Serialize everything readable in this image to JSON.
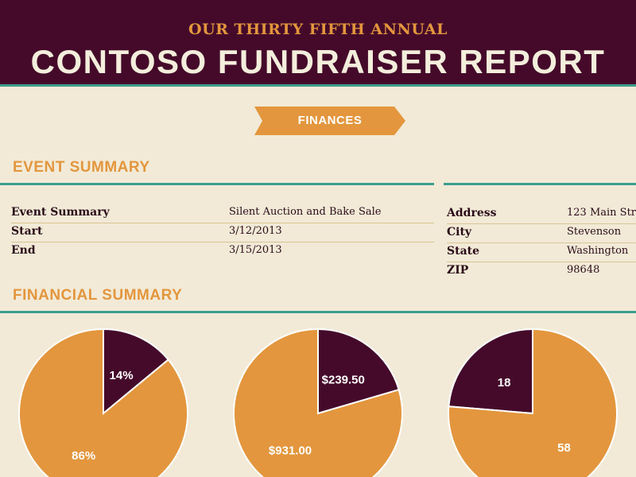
{
  "header": {
    "subtitle": "OUR THIRTY FIFTH ANNUAL",
    "title": "CONTOSO FUNDRAISER REPORT"
  },
  "finances_tab": {
    "label": "FINANCES"
  },
  "event_summary": {
    "heading": "EVENT SUMMARY",
    "left_rows": [
      {
        "label": "Event Summary",
        "value": "Silent Auction and Bake Sale"
      },
      {
        "label": "Start",
        "value": "3/12/2013"
      },
      {
        "label": "End",
        "value": "3/15/2013"
      }
    ],
    "right_rows": [
      {
        "label": "Address",
        "value": "123 Main Str"
      },
      {
        "label": "City",
        "value": "Stevenson"
      },
      {
        "label": "State",
        "value": "Washington"
      },
      {
        "label": "ZIP",
        "value": "98648"
      }
    ]
  },
  "financial_summary": {
    "heading": "FINANCIAL SUMMARY"
  },
  "colors": {
    "primary": "#450A2A",
    "accent": "#E3963D",
    "teal": "#3D9E8E",
    "background": "#F2EAD7"
  },
  "chart_data": [
    {
      "type": "pie",
      "slices": [
        {
          "label": "14%",
          "value": 14,
          "color": "#450A2A"
        },
        {
          "label": "86%",
          "value": 86,
          "color": "#E3963D"
        }
      ]
    },
    {
      "type": "pie",
      "slices": [
        {
          "label": "$239.50",
          "value": 239.5,
          "color": "#450A2A"
        },
        {
          "label": "$931.00",
          "value": 931.0,
          "color": "#E3963D"
        }
      ]
    },
    {
      "type": "pie",
      "start_offset_value": -18,
      "slices": [
        {
          "label": "18",
          "value": 18,
          "color": "#450A2A"
        },
        {
          "label": "58",
          "value": 58,
          "color": "#E3963D"
        }
      ]
    }
  ]
}
